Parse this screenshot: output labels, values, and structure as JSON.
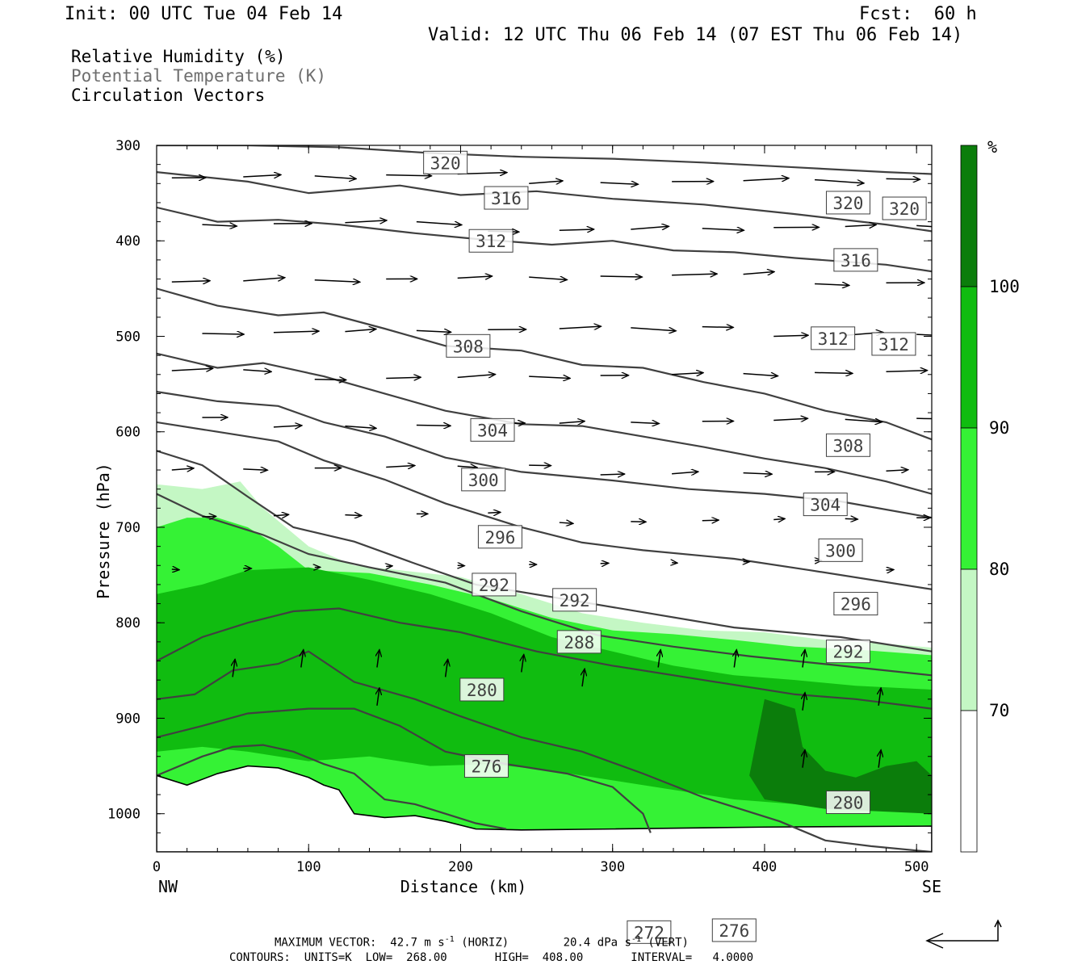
{
  "header": {
    "init": "Init: 00 UTC Tue 04 Feb 14",
    "fcst": "Fcst:  60 h",
    "valid": "Valid: 12 UTC Thu 06 Feb 14 (07 EST Thu 06 Feb 14)"
  },
  "legend": {
    "items": [
      {
        "label": "Relative Humidity (%)",
        "color": "#000000"
      },
      {
        "label": "Potential Temperature (K)",
        "color": "#6e6e6e"
      },
      {
        "label": "Circulation Vectors",
        "color": "#000000"
      }
    ]
  },
  "chart_data": {
    "type": "heatmap",
    "description_fields": "cross-section",
    "xlabel": "Distance (km)",
    "ylabel": "Pressure (hPa)",
    "xlim": [
      0,
      510
    ],
    "ylim": [
      1040,
      300
    ],
    "x_ticks": [
      0,
      100,
      200,
      300,
      400,
      500
    ],
    "y_ticks": [
      300,
      400,
      500,
      600,
      700,
      800,
      900,
      1000
    ],
    "x_end_labels": {
      "left": "NW",
      "right": "SE"
    },
    "colorbar": {
      "unit": "%",
      "levels": [
        70,
        80,
        90,
        100
      ],
      "colors": [
        "#ffffff",
        "#c4f7c4",
        "#35f235",
        "#10bc10",
        "#0b7d0b"
      ]
    },
    "theta_contours": [
      {
        "label": "320",
        "points": [
          [
            0,
            300
          ],
          [
            60,
            300
          ],
          [
            120,
            302
          ],
          [
            180,
            308
          ],
          [
            240,
            312
          ],
          [
            300,
            314
          ],
          [
            360,
            318
          ],
          [
            420,
            323
          ],
          [
            480,
            328
          ],
          [
            510,
            330
          ]
        ],
        "label_pos": [
          [
            190,
            318
          ],
          [
            455,
            360
          ],
          [
            492,
            366
          ]
        ]
      },
      {
        "label": "316",
        "points": [
          [
            0,
            328
          ],
          [
            60,
            338
          ],
          [
            100,
            350
          ],
          [
            160,
            342
          ],
          [
            200,
            352
          ],
          [
            250,
            348
          ],
          [
            300,
            356
          ],
          [
            360,
            362
          ],
          [
            420,
            372
          ],
          [
            480,
            383
          ],
          [
            510,
            390
          ]
        ],
        "label_pos": [
          [
            230,
            355
          ],
          [
            460,
            420
          ]
        ]
      },
      {
        "label": "312",
        "points": [
          [
            0,
            365
          ],
          [
            40,
            380
          ],
          [
            80,
            378
          ],
          [
            120,
            383
          ],
          [
            170,
            392
          ],
          [
            210,
            398
          ],
          [
            260,
            404
          ],
          [
            300,
            400
          ],
          [
            340,
            410
          ],
          [
            380,
            412
          ],
          [
            420,
            418
          ],
          [
            480,
            425
          ],
          [
            510,
            432
          ]
        ],
        "label_pos": [
          [
            220,
            400
          ],
          [
            445,
            502
          ],
          [
            485,
            508
          ]
        ]
      },
      {
        "label": "308",
        "points": [
          [
            0,
            450
          ],
          [
            40,
            468
          ],
          [
            80,
            478
          ],
          [
            110,
            475
          ],
          [
            150,
            492
          ],
          [
            190,
            510
          ],
          [
            240,
            515
          ],
          [
            280,
            530
          ],
          [
            320,
            533
          ],
          [
            360,
            548
          ],
          [
            400,
            560
          ],
          [
            440,
            578
          ],
          [
            480,
            590
          ],
          [
            510,
            608
          ]
        ],
        "label_pos": [
          [
            205,
            510
          ],
          [
            455,
            614
          ]
        ]
      },
      {
        "label": "304",
        "points": [
          [
            0,
            518
          ],
          [
            40,
            533
          ],
          [
            70,
            528
          ],
          [
            110,
            542
          ],
          [
            150,
            560
          ],
          [
            190,
            578
          ],
          [
            240,
            592
          ],
          [
            280,
            594
          ],
          [
            320,
            605
          ],
          [
            360,
            616
          ],
          [
            400,
            628
          ],
          [
            440,
            638
          ],
          [
            480,
            652
          ],
          [
            510,
            665
          ]
        ],
        "label_pos": [
          [
            221,
            598
          ],
          [
            440,
            676
          ]
        ]
      },
      {
        "label": "300",
        "points": [
          [
            0,
            558
          ],
          [
            40,
            568
          ],
          [
            80,
            573
          ],
          [
            110,
            590
          ],
          [
            150,
            605
          ],
          [
            190,
            627
          ],
          [
            240,
            642
          ],
          [
            300,
            651
          ],
          [
            350,
            660
          ],
          [
            400,
            665
          ],
          [
            450,
            673
          ],
          [
            510,
            690
          ]
        ],
        "label_pos": [
          [
            215,
            650
          ],
          [
            450,
            724
          ]
        ]
      },
      {
        "label": "296",
        "points": [
          [
            0,
            590
          ],
          [
            40,
            600
          ],
          [
            80,
            610
          ],
          [
            110,
            630
          ],
          [
            150,
            650
          ],
          [
            190,
            675
          ],
          [
            240,
            700
          ],
          [
            280,
            716
          ],
          [
            320,
            724
          ],
          [
            380,
            733
          ],
          [
            430,
            745
          ],
          [
            510,
            765
          ]
        ],
        "label_pos": [
          [
            226,
            710
          ],
          [
            460,
            780
          ]
        ]
      },
      {
        "label": "292",
        "points": [
          [
            0,
            620
          ],
          [
            30,
            635
          ],
          [
            60,
            668
          ],
          [
            90,
            700
          ],
          [
            130,
            715
          ],
          [
            170,
            738
          ],
          [
            210,
            760
          ],
          [
            260,
            773
          ],
          [
            320,
            789
          ],
          [
            380,
            805
          ],
          [
            450,
            815
          ],
          [
            510,
            830
          ]
        ],
        "label_pos": [
          [
            222,
            760
          ],
          [
            275,
            776
          ],
          [
            455,
            830
          ]
        ]
      },
      {
        "label": "288",
        "points": [
          [
            0,
            665
          ],
          [
            30,
            688
          ],
          [
            70,
            708
          ],
          [
            100,
            728
          ],
          [
            140,
            742
          ],
          [
            190,
            758
          ],
          [
            240,
            788
          ],
          [
            290,
            813
          ],
          [
            340,
            825
          ],
          [
            390,
            835
          ],
          [
            450,
            845
          ],
          [
            510,
            855
          ]
        ],
        "label_pos": [
          [
            278,
            820
          ]
        ]
      },
      {
        "label": "280",
        "points": [
          [
            0,
            840
          ],
          [
            30,
            815
          ],
          [
            60,
            800
          ],
          [
            90,
            788
          ],
          [
            120,
            785
          ],
          [
            160,
            800
          ],
          [
            200,
            810
          ],
          [
            250,
            830
          ],
          [
            300,
            845
          ],
          [
            360,
            860
          ],
          [
            420,
            875
          ],
          [
            460,
            880
          ],
          [
            490,
            886
          ],
          [
            510,
            890
          ]
        ],
        "label_pos": [
          [
            214,
            870
          ],
          [
            455,
            988
          ]
        ]
      },
      {
        "label": "276",
        "points": [
          [
            0,
            880
          ],
          [
            25,
            875
          ],
          [
            50,
            850
          ],
          [
            80,
            843
          ],
          [
            100,
            830
          ],
          [
            130,
            862
          ],
          [
            170,
            880
          ],
          [
            200,
            898
          ],
          [
            240,
            920
          ],
          [
            280,
            935
          ],
          [
            320,
            958
          ],
          [
            360,
            983
          ],
          [
            410,
            1008
          ],
          [
            440,
            1028
          ],
          [
            470,
            1034
          ],
          [
            510,
            1040
          ]
        ],
        "label_pos": [
          [
            217,
            950
          ],
          [
            380,
            1122
          ]
        ]
      },
      {
        "label": "272",
        "points": [
          [
            0,
            920
          ],
          [
            30,
            908
          ],
          [
            60,
            895
          ],
          [
            100,
            890
          ],
          [
            130,
            890
          ],
          [
            160,
            908
          ],
          [
            190,
            935
          ],
          [
            230,
            948
          ],
          [
            270,
            958
          ],
          [
            300,
            972
          ],
          [
            320,
            1000
          ],
          [
            325,
            1020
          ]
        ],
        "label_pos": [
          [
            324,
            1124
          ]
        ]
      },
      {
        "label": "",
        "points": [
          [
            0,
            960
          ],
          [
            30,
            940
          ],
          [
            50,
            930
          ],
          [
            70,
            928
          ],
          [
            90,
            935
          ],
          [
            110,
            948
          ],
          [
            130,
            958
          ],
          [
            150,
            985
          ],
          [
            170,
            990
          ],
          [
            190,
            1000
          ],
          [
            210,
            1010
          ],
          [
            230,
            1016
          ]
        ],
        "label_pos": []
      }
    ],
    "title": ""
  },
  "footer": {
    "max_vector_line": "MAXIMUM VECTOR:  42.7 m s",
    "max_vector_exp1": "-1",
    "max_vector_mid": " (HORIZ)        20.4 dPa s",
    "max_vector_exp2": "-1",
    "max_vector_end": " (VERT)",
    "contours_line": "CONTOURS:  UNITS=K  LOW=  268.00       HIGH=  408.00       INTERVAL=   4.0000"
  }
}
